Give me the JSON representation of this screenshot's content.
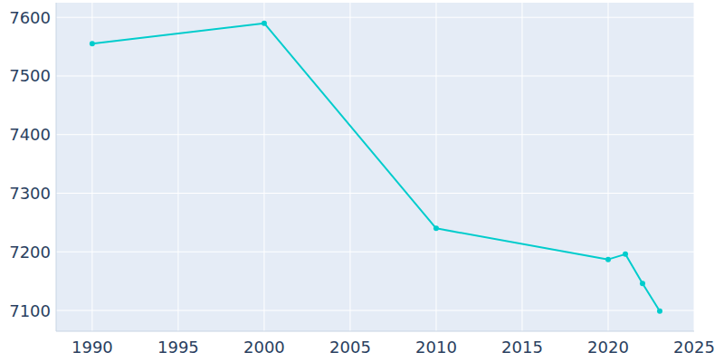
{
  "chart_data": {
    "type": "line",
    "x": [
      1990,
      2000,
      2010,
      2020,
      2021,
      2022,
      2023
    ],
    "values": [
      7555,
      7590,
      7240,
      7187,
      7196,
      7146,
      7099
    ],
    "color": "#00cccc",
    "marker": "circle",
    "line_style": "solid",
    "xlim": [
      1987.9,
      2025
    ],
    "xticks": [
      1990,
      1995,
      2000,
      2005,
      2010,
      2015,
      2020,
      2025
    ],
    "ylim": [
      7064.5,
      7625
    ],
    "yticks": [
      7100,
      7200,
      7300,
      7400,
      7500,
      7600
    ],
    "grid": true
  }
}
